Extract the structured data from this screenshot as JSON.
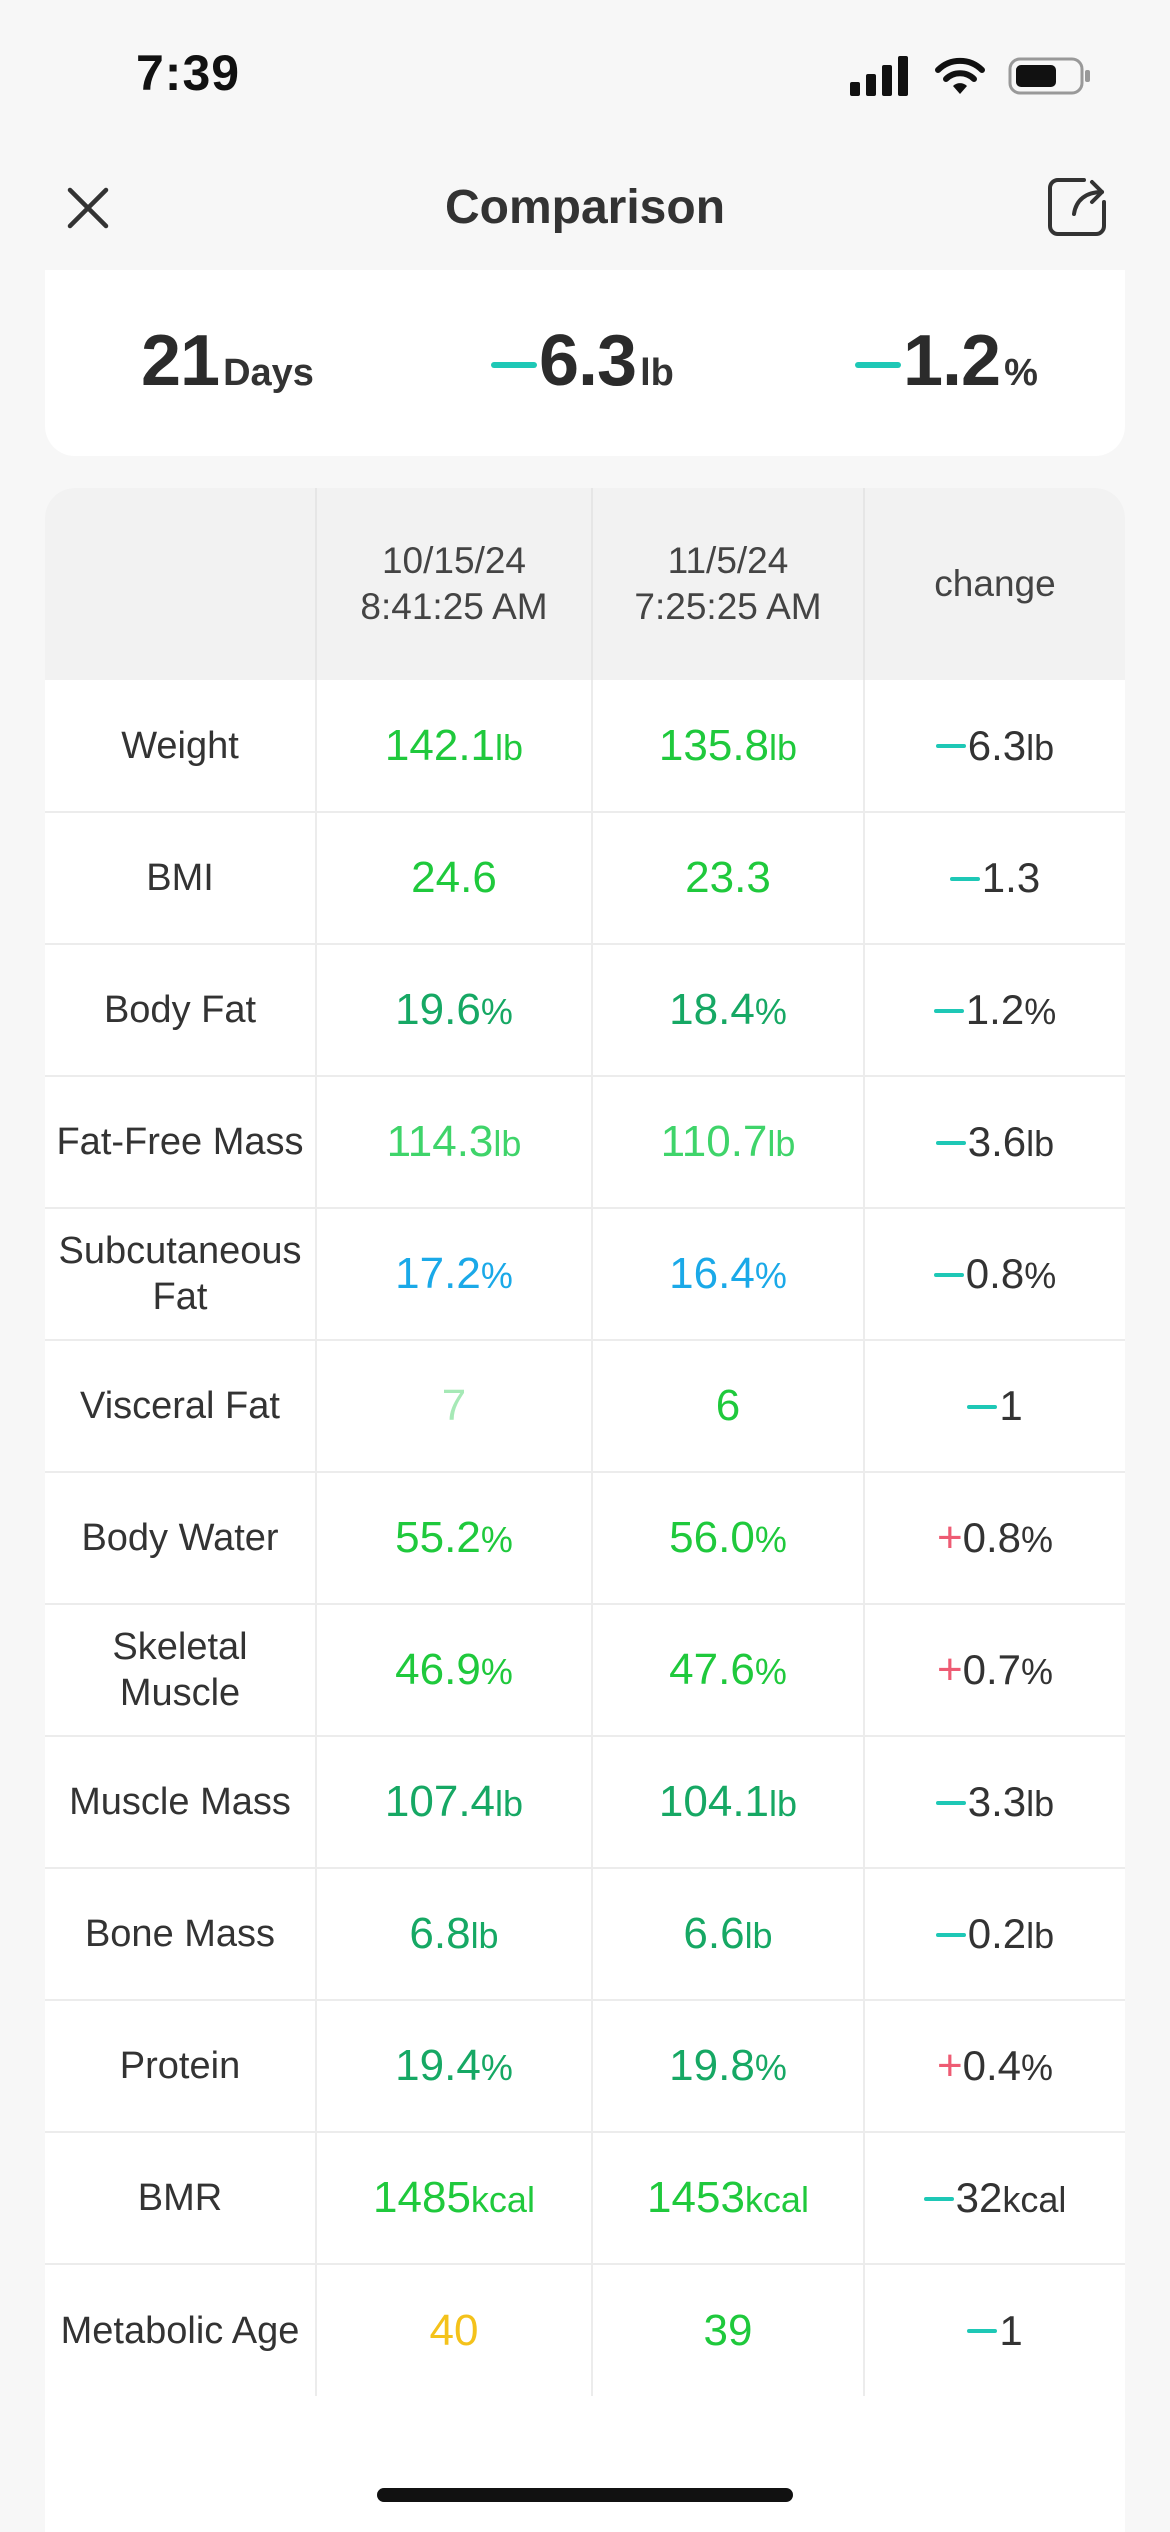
{
  "status": {
    "time": "7:39"
  },
  "nav": {
    "title": "Comparison"
  },
  "summary": {
    "days": "21",
    "days_unit": "Days",
    "weight_change": "6.3",
    "weight_unit": "lb",
    "fat_change": "1.2",
    "fat_unit": "%"
  },
  "table": {
    "headers": [
      "",
      "10/15/24\n8:41:25 AM",
      "11/5/24\n7:25:25 AM",
      "change"
    ],
    "rows": [
      {
        "label": "Weight",
        "v1": "142.1",
        "v2": "135.8",
        "unit": "lb",
        "sign": "-",
        "change": "6.3",
        "c1": "#1fc93c",
        "c2": "#1fc93c"
      },
      {
        "label": "BMI",
        "v1": "24.6",
        "v2": "23.3",
        "unit": "",
        "sign": "-",
        "change": "1.3",
        "c1": "#1fc93c",
        "c2": "#1fc93c"
      },
      {
        "label": "Body Fat",
        "v1": "19.6",
        "v2": "18.4",
        "unit": "%",
        "sign": "-",
        "change": "1.2",
        "c1": "#16a864",
        "c2": "#16a864"
      },
      {
        "label": "Fat-Free Mass",
        "v1": "114.3",
        "v2": "110.7",
        "unit": "lb",
        "sign": "-",
        "change": "3.6",
        "c1": "#3fd46a",
        "c2": "#3fd46a"
      },
      {
        "label": "Subcutaneous\nFat",
        "v1": "17.2",
        "v2": "16.4",
        "unit": "%",
        "sign": "-",
        "change": "0.8",
        "c1": "#1aa9e8",
        "c2": "#1aa9e8"
      },
      {
        "label": "Visceral Fat",
        "v1": "7",
        "v2": "6",
        "unit": "",
        "sign": "-",
        "change": "1",
        "c1": "#a6e9b6",
        "c2": "#1fc93c"
      },
      {
        "label": "Body Water",
        "v1": "55.2",
        "v2": "56.0",
        "unit": "%",
        "sign": "+",
        "change": "0.8",
        "c1": "#1fc93c",
        "c2": "#1fc93c"
      },
      {
        "label": "Skeletal\nMuscle",
        "v1": "46.9",
        "v2": "47.6",
        "unit": "%",
        "sign": "+",
        "change": "0.7",
        "c1": "#1fc93c",
        "c2": "#1fc93c"
      },
      {
        "label": "Muscle Mass",
        "v1": "107.4",
        "v2": "104.1",
        "unit": "lb",
        "sign": "-",
        "change": "3.3",
        "c1": "#16a864",
        "c2": "#16a864"
      },
      {
        "label": "Bone Mass",
        "v1": "6.8",
        "v2": "6.6",
        "unit": "lb",
        "sign": "-",
        "change": "0.2",
        "c1": "#16a864",
        "c2": "#16a864"
      },
      {
        "label": "Protein",
        "v1": "19.4",
        "v2": "19.8",
        "unit": "%",
        "sign": "+",
        "change": "0.4",
        "c1": "#16a864",
        "c2": "#16a864"
      },
      {
        "label": "BMR",
        "v1": "1485",
        "v2": "1453",
        "unit": "kcal",
        "sign": "-",
        "change": "32",
        "c1": "#1fc93c",
        "c2": "#1fc93c"
      },
      {
        "label": "Metabolic Age",
        "v1": "40",
        "v2": "39",
        "unit": "",
        "sign": "-",
        "change": "1",
        "c1": "#f4c21b",
        "c2": "#1fc93c"
      }
    ]
  },
  "colors": {
    "minus": "#1ec8b6",
    "plus": "#ee5b73"
  }
}
